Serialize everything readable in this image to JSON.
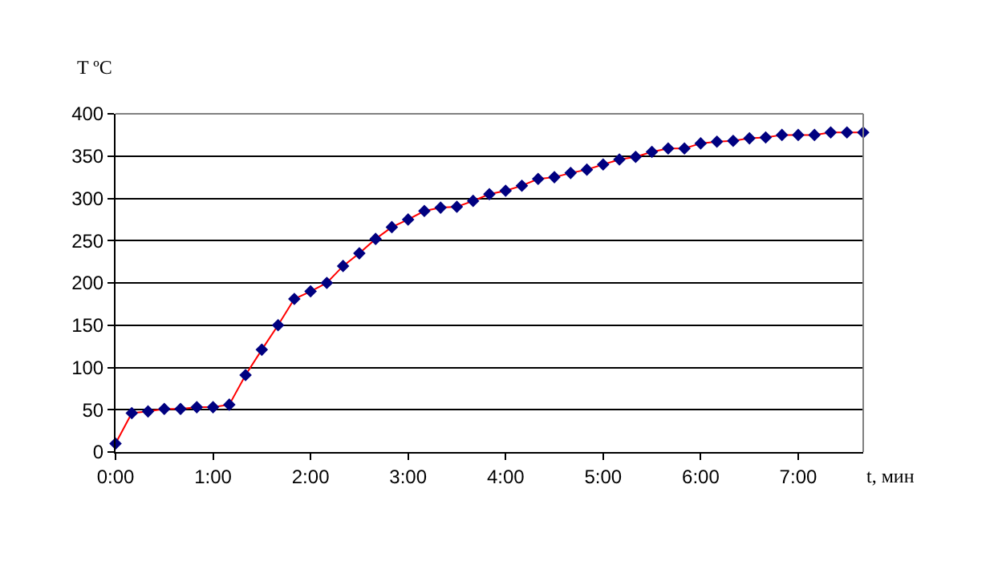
{
  "chart_data": {
    "type": "line",
    "xlabel": "t, мин",
    "ylabel": "T ºC",
    "x": [
      0,
      0.1667,
      0.3333,
      0.5,
      0.6667,
      0.8333,
      1,
      1.1667,
      1.3333,
      1.5,
      1.6667,
      1.8333,
      2,
      2.1667,
      2.3333,
      2.5,
      2.6667,
      2.8333,
      3,
      3.1667,
      3.3333,
      3.5,
      3.6667,
      3.8333,
      4,
      4.1667,
      4.3333,
      4.5,
      4.6667,
      4.8333,
      5,
      5.1667,
      5.3333,
      5.5,
      5.6667,
      5.8333,
      6,
      6.1667,
      6.3333,
      6.5,
      6.6667,
      6.8333,
      7,
      7.1667,
      7.3333,
      7.5,
      7.6667
    ],
    "series": [
      {
        "color": "#ff0000",
        "values": [
          10,
          46,
          48,
          51,
          51,
          53,
          53,
          56,
          91,
          121,
          150,
          181,
          190,
          200,
          220,
          235,
          252,
          266,
          275,
          285,
          289,
          290,
          297,
          305,
          309,
          315,
          323,
          325,
          330,
          334,
          340,
          346,
          349,
          355,
          359,
          359,
          365,
          367,
          368,
          371,
          372,
          375,
          375,
          375,
          378,
          378,
          378
        ]
      }
    ],
    "xlim": [
      0,
      7.6667
    ],
    "xticks": [
      {
        "value": 0,
        "label": "0:00"
      },
      {
        "value": 1,
        "label": "1:00"
      },
      {
        "value": 2,
        "label": "2:00"
      },
      {
        "value": 3,
        "label": "3:00"
      },
      {
        "value": 4,
        "label": "4:00"
      },
      {
        "value": 5,
        "label": "5:00"
      },
      {
        "value": 6,
        "label": "6:00"
      },
      {
        "value": 7,
        "label": "7:00"
      }
    ],
    "ylim": [
      0,
      400
    ],
    "yticks": [
      0,
      50,
      100,
      150,
      200,
      250,
      300,
      350,
      400
    ],
    "grid": "y",
    "marker": "diamond",
    "line_style": "solid"
  }
}
